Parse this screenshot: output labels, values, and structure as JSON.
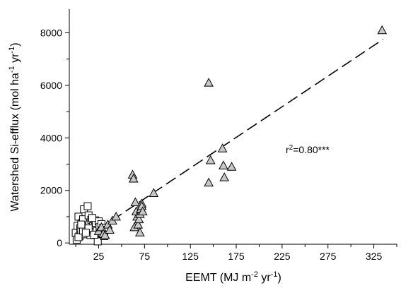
{
  "chart_data": {
    "type": "scatter",
    "xlabel": "EEMT (MJ m",
    "xlabel_sup1": "-2",
    "xlabel_mid": " yr",
    "xlabel_sup2": "-1",
    "xlabel_end": ")",
    "ylabel": "Watershed Si-efflux (mol ha",
    "ylabel_sup1": "-1",
    "ylabel_mid": " yr",
    "ylabel_sup2": "-1",
    "ylabel_end": ")",
    "annotation": "r",
    "annotation_sup": "2",
    "annotation_end": "=0.80***",
    "xlim": [
      -7,
      350
    ],
    "ylim": [
      -50,
      8900
    ],
    "x_ticks": [
      25,
      75,
      125,
      175,
      225,
      275,
      325
    ],
    "y_ticks": [
      0,
      2000,
      4000,
      6000,
      8000
    ],
    "x_minor_ticks": [
      0,
      50,
      100,
      150,
      200,
      250,
      300,
      350
    ],
    "fit_line": {
      "x": [
        25,
        335
      ],
      "y": [
        520,
        7750
      ]
    },
    "series": [
      {
        "marker": "square",
        "color": "#ffffff",
        "x": [
          0,
          1,
          2,
          3,
          4,
          5,
          6,
          7,
          8,
          9,
          10,
          11,
          12,
          13,
          14,
          15,
          16,
          17,
          18,
          19,
          20,
          21,
          22,
          23,
          24,
          25,
          26,
          27,
          28,
          29,
          30,
          31,
          32,
          3,
          8,
          14,
          20,
          6,
          11,
          18
        ],
        "y": [
          380,
          120,
          650,
          1000,
          250,
          560,
          480,
          760,
          900,
          1280,
          330,
          430,
          620,
          1400,
          1050,
          700,
          300,
          880,
          520,
          640,
          420,
          860,
          760,
          460,
          60,
          820,
          600,
          400,
          720,
          340,
          580,
          260,
          500,
          220,
          470,
          550,
          310,
          700,
          390,
          950
        ]
      },
      {
        "marker": "triangle",
        "color": "#c8c8c8",
        "x": [
          25,
          28,
          30,
          32,
          35,
          37,
          40,
          44,
          62,
          63,
          64,
          65,
          66,
          67,
          68,
          69,
          70,
          70,
          71,
          72,
          72,
          73,
          85,
          145,
          145,
          147,
          160,
          161,
          162,
          170,
          334
        ],
        "y": [
          450,
          600,
          350,
          300,
          700,
          500,
          850,
          1000,
          2600,
          2450,
          600,
          1550,
          1200,
          1000,
          700,
          900,
          1100,
          400,
          1300,
          1500,
          1400,
          1200,
          1900,
          6100,
          2300,
          3150,
          3600,
          2950,
          2500,
          2900,
          8100
        ]
      }
    ]
  }
}
